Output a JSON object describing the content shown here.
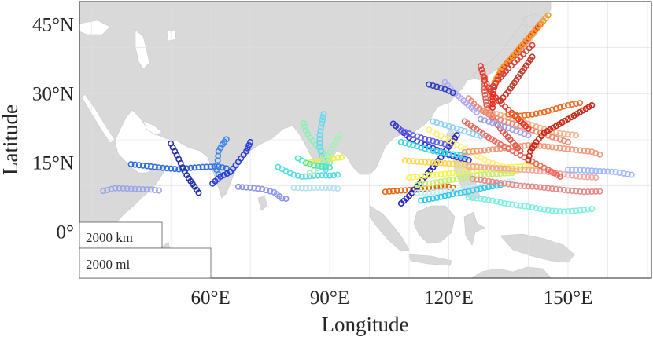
{
  "map": {
    "xlabel": "Longitude",
    "ylabel": "Latitude",
    "lon_range": [
      27,
      171
    ],
    "lat_range": [
      -10,
      50
    ],
    "x_ticks": [
      {
        "value": 60,
        "label": "60°E"
      },
      {
        "value": 90,
        "label": "90°E"
      },
      {
        "value": 120,
        "label": "120°E"
      },
      {
        "value": 150,
        "label": "150°E"
      }
    ],
    "y_ticks": [
      {
        "value": 0,
        "label": "0°"
      },
      {
        "value": 15,
        "label": "15°N"
      },
      {
        "value": 30,
        "label": "30°N"
      },
      {
        "value": 45,
        "label": "45°N"
      }
    ],
    "grid": true,
    "colors": {
      "land": "#d9d9d9",
      "sea": "#ffffff",
      "grid": "#dedede",
      "axis": "#262626"
    }
  },
  "scale_bar": {
    "km_label": "2000 km",
    "mi_label": "2000 mi",
    "position": "bottom-left"
  },
  "tracks": [
    {
      "color": "#9ea6e6",
      "points": [
        [
          33,
          8.9
        ],
        [
          36,
          9.5
        ],
        [
          39,
          9.4
        ],
        [
          42,
          9.3
        ],
        [
          45,
          9.2
        ],
        [
          47,
          9.0
        ]
      ]
    },
    {
      "color": "#2f6de0",
      "points": [
        [
          40,
          14.7
        ],
        [
          44,
          14.3
        ],
        [
          48,
          13.9
        ],
        [
          52,
          13.6
        ],
        [
          55,
          13.9
        ],
        [
          58,
          14.1
        ],
        [
          62,
          14.2
        ],
        [
          64,
          13.8
        ],
        [
          65,
          13.1
        ]
      ]
    },
    {
      "color": "#242fa6",
      "points": [
        [
          50,
          19.2
        ],
        [
          51,
          17.5
        ],
        [
          52,
          15.8
        ],
        [
          53,
          14.0
        ],
        [
          54,
          12.3
        ],
        [
          55,
          11.0
        ],
        [
          56,
          9.8
        ],
        [
          57,
          8.5
        ]
      ]
    },
    {
      "color": "#3f86ea",
      "points": [
        [
          64,
          20.1
        ],
        [
          63,
          19.0
        ],
        [
          62,
          17.5
        ],
        [
          61.8,
          15.5
        ],
        [
          61.5,
          13.5
        ],
        [
          62,
          12.5
        ]
      ]
    },
    {
      "color": "#2a3ed9",
      "points": [
        [
          70,
          19.5
        ],
        [
          69,
          17.5
        ],
        [
          67,
          15.2
        ],
        [
          65,
          13.0
        ],
        [
          62.5,
          12.0
        ],
        [
          60.5,
          10.5
        ]
      ]
    },
    {
      "color": "#8c94e8",
      "points": [
        [
          67,
          9.8
        ],
        [
          70,
          9.6
        ],
        [
          73,
          9.3
        ],
        [
          76,
          8.6
        ],
        [
          78,
          7.3
        ],
        [
          79,
          7.2
        ]
      ]
    },
    {
      "color": "#55dde0",
      "points": [
        [
          77,
          14.1
        ],
        [
          79,
          13.2
        ],
        [
          81,
          12.4
        ],
        [
          83,
          12.0
        ],
        [
          85,
          12.1
        ],
        [
          88,
          12.3
        ],
        [
          90,
          12.2
        ],
        [
          92,
          12.4
        ]
      ]
    },
    {
      "color": "#8bf0b8",
      "points": [
        [
          83.5,
          23.6
        ],
        [
          84,
          22.0
        ],
        [
          85,
          20.5
        ],
        [
          86.5,
          19.0
        ],
        [
          88,
          17.5
        ],
        [
          89,
          16.0
        ],
        [
          90,
          15.0
        ]
      ]
    },
    {
      "color": "#6ad8f0",
      "points": [
        [
          88.5,
          25.6
        ],
        [
          88,
          23.5
        ],
        [
          87.5,
          21.0
        ],
        [
          87.5,
          18.5
        ],
        [
          88,
          16.5
        ],
        [
          88.5,
          15.0
        ],
        [
          89,
          13.5
        ]
      ]
    },
    {
      "color": "#e6f04d",
      "points": [
        [
          84.5,
          15.0
        ],
        [
          87,
          15.4
        ],
        [
          89,
          15.8
        ],
        [
          91,
          16.0
        ],
        [
          93,
          16.2
        ]
      ]
    },
    {
      "color": "#a6eebd",
      "points": [
        [
          92.5,
          21.0
        ],
        [
          91.5,
          19.5
        ],
        [
          90.5,
          18.0
        ],
        [
          89.5,
          16.5
        ],
        [
          88.5,
          15.0
        ],
        [
          87,
          13.8
        ],
        [
          85,
          12.8
        ]
      ]
    },
    {
      "color": "#4ce6c0",
      "points": [
        [
          82,
          16.0
        ],
        [
          84,
          15.0
        ],
        [
          86,
          14.5
        ],
        [
          88,
          14.2
        ],
        [
          90,
          14.0
        ]
      ]
    },
    {
      "color": "#b7e0ef",
      "points": [
        [
          81,
          9.6
        ],
        [
          84,
          9.5
        ],
        [
          87,
          9.6
        ],
        [
          90,
          9.6
        ],
        [
          92,
          9.4
        ]
      ]
    },
    {
      "color": "#e86a16",
      "points": [
        [
          104,
          8.7
        ],
        [
          108,
          9.0
        ],
        [
          112,
          9.2
        ],
        [
          116,
          9.6
        ],
        [
          119,
          10.0
        ],
        [
          121,
          9.6
        ]
      ]
    },
    {
      "color": "#2a28b8",
      "points": [
        [
          108,
          6.2
        ],
        [
          110,
          7.8
        ],
        [
          112,
          9.8
        ],
        [
          114,
          12.0
        ],
        [
          116,
          14.0
        ],
        [
          118,
          16.2
        ],
        [
          120,
          18.5
        ],
        [
          122,
          21.0
        ]
      ]
    },
    {
      "color": "#3a36d0",
      "points": [
        [
          106,
          23.5
        ],
        [
          108,
          22.0
        ],
        [
          110,
          20.5
        ],
        [
          113,
          19.3
        ],
        [
          116,
          18.2
        ],
        [
          119,
          17.0
        ],
        [
          122,
          16.2
        ],
        [
          125,
          15.6
        ]
      ]
    },
    {
      "color": "#5f5ff0",
      "points": [
        [
          108,
          22.0
        ],
        [
          111,
          21.0
        ],
        [
          114,
          20.2
        ],
        [
          117,
          19.5
        ],
        [
          120,
          18.8
        ]
      ]
    },
    {
      "color": "#38d8e6",
      "points": [
        [
          108,
          19.5
        ],
        [
          112,
          18.6
        ],
        [
          116,
          17.6
        ],
        [
          120,
          17.0
        ],
        [
          124,
          16.5
        ]
      ]
    },
    {
      "color": "#ffd54a",
      "points": [
        [
          109,
          15.5
        ],
        [
          113,
          15.2
        ],
        [
          117,
          15.0
        ],
        [
          121,
          14.8
        ],
        [
          125,
          14.5
        ],
        [
          129,
          14.0
        ],
        [
          133,
          13.5
        ],
        [
          137,
          13.2
        ]
      ]
    },
    {
      "color": "#f4f44f",
      "points": [
        [
          110,
          11.8
        ],
        [
          114,
          12.2
        ],
        [
          118,
          12.5
        ],
        [
          122,
          12.9
        ],
        [
          126,
          13.3
        ],
        [
          130,
          13.8
        ],
        [
          134,
          14.0
        ],
        [
          138,
          14.2
        ],
        [
          142,
          14.4
        ]
      ]
    },
    {
      "color": "#c6f06f",
      "points": [
        [
          112,
          10.2
        ],
        [
          116,
          10.6
        ],
        [
          120,
          11.2
        ],
        [
          124,
          11.8
        ],
        [
          128,
          12.4
        ],
        [
          132,
          12.6
        ],
        [
          136,
          12.8
        ]
      ]
    },
    {
      "color": "#fff07a",
      "points": [
        [
          115,
          22.2
        ],
        [
          118,
          20.8
        ],
        [
          121,
          19.4
        ],
        [
          124,
          18.0
        ],
        [
          127,
          16.6
        ],
        [
          130,
          15.2
        ],
        [
          133,
          14.3
        ]
      ]
    },
    {
      "color": "#bff0f2",
      "points": [
        [
          112,
          8.5
        ],
        [
          116,
          8.6
        ],
        [
          120,
          8.8
        ],
        [
          124,
          9.2
        ],
        [
          128,
          9.8
        ],
        [
          132,
          10.4
        ],
        [
          136,
          11.0
        ]
      ]
    },
    {
      "color": "#7ff0e0",
      "points": [
        [
          125,
          7.5
        ],
        [
          128,
          7.2
        ],
        [
          131,
          6.8
        ],
        [
          134,
          6.2
        ],
        [
          137,
          5.8
        ],
        [
          140,
          5.5
        ],
        [
          143,
          5.0
        ],
        [
          146,
          4.6
        ],
        [
          149,
          4.4
        ],
        [
          152,
          4.6
        ],
        [
          156,
          5.0
        ]
      ]
    },
    {
      "color": "#36c8ee",
      "points": [
        [
          113,
          6.8
        ],
        [
          117,
          7.4
        ],
        [
          121,
          8.2
        ],
        [
          125,
          8.8
        ],
        [
          129,
          9.6
        ],
        [
          133,
          10.2
        ]
      ]
    },
    {
      "color": "#f5a8a0",
      "points": [
        [
          125,
          14.2
        ],
        [
          129,
          14.0
        ],
        [
          133,
          13.8
        ],
        [
          137,
          13.6
        ],
        [
          141,
          13.4
        ],
        [
          145,
          13.0
        ],
        [
          149,
          12.5
        ],
        [
          153,
          12.0
        ],
        [
          157,
          11.8
        ]
      ]
    },
    {
      "color": "#e78a8a",
      "points": [
        [
          126,
          11.5
        ],
        [
          130,
          11.0
        ],
        [
          134,
          10.5
        ],
        [
          138,
          10.0
        ],
        [
          142,
          9.8
        ],
        [
          146,
          9.4
        ],
        [
          150,
          9.0
        ],
        [
          154,
          8.7
        ],
        [
          158,
          8.8
        ]
      ]
    },
    {
      "color": "#f09a7a",
      "points": [
        [
          124,
          17.3
        ],
        [
          128,
          17.6
        ],
        [
          132,
          18.0
        ],
        [
          136,
          18.4
        ],
        [
          140,
          18.8
        ],
        [
          144,
          18.6
        ],
        [
          148,
          18.2
        ],
        [
          152,
          17.8
        ],
        [
          156,
          17.4
        ],
        [
          158,
          16.8
        ]
      ]
    },
    {
      "color": "#ea6a60",
      "points": [
        [
          124,
          24.0
        ],
        [
          127,
          22.2
        ],
        [
          130,
          20.5
        ],
        [
          133,
          19.0
        ],
        [
          136,
          17.6
        ],
        [
          139,
          16.2
        ],
        [
          142,
          14.8
        ],
        [
          145,
          13.5
        ],
        [
          148,
          12.0
        ]
      ]
    },
    {
      "color": "#e05a50",
      "points": [
        [
          129,
          33.5
        ],
        [
          129,
          30.5
        ],
        [
          129.5,
          27.5
        ],
        [
          131,
          24.8
        ],
        [
          133,
          22.4
        ],
        [
          135.5,
          20.0
        ],
        [
          138,
          17.6
        ]
      ]
    },
    {
      "color": "#f2b58a",
      "points": [
        [
          128,
          26.5
        ],
        [
          132,
          25.6
        ],
        [
          136,
          24.6
        ],
        [
          140,
          23.5
        ],
        [
          144,
          22.3
        ],
        [
          148,
          21.4
        ],
        [
          152,
          21.0
        ]
      ]
    },
    {
      "color": "#ee8870",
      "points": [
        [
          125,
          29.0
        ],
        [
          127,
          27.2
        ],
        [
          130,
          25.5
        ],
        [
          134,
          24.0
        ],
        [
          138,
          23.0
        ],
        [
          142,
          21.8
        ],
        [
          146,
          20.6
        ],
        [
          150,
          19.5
        ]
      ]
    },
    {
      "color": "#e83828",
      "points": [
        [
          128,
          36.0
        ],
        [
          129,
          33.0
        ],
        [
          130.5,
          30.5
        ],
        [
          132.5,
          28.5
        ],
        [
          135,
          26.5
        ],
        [
          137.5,
          24.5
        ],
        [
          140,
          22.4
        ]
      ]
    },
    {
      "color": "#c72818",
      "points": [
        [
          156,
          27.5
        ],
        [
          153,
          26.0
        ],
        [
          150,
          24.5
        ],
        [
          147,
          23.0
        ],
        [
          144,
          21.5
        ],
        [
          142,
          19.5
        ],
        [
          140.5,
          17.5
        ],
        [
          140,
          15.5
        ]
      ]
    },
    {
      "color": "#f06a20",
      "points": [
        [
          153,
          28.0
        ],
        [
          150,
          27.5
        ],
        [
          147,
          26.8
        ],
        [
          144,
          26.0
        ],
        [
          141,
          25.5
        ],
        [
          138,
          25.2
        ],
        [
          135,
          25.5
        ]
      ]
    },
    {
      "color": "#e52d20",
      "points": [
        [
          143,
          45.0
        ],
        [
          140,
          42.0
        ],
        [
          137,
          39.0
        ],
        [
          134,
          36.0
        ],
        [
          132,
          33.0
        ],
        [
          131,
          30.0
        ],
        [
          131,
          27.0
        ]
      ]
    },
    {
      "color": "#f49b2a",
      "points": [
        [
          145,
          47.0
        ],
        [
          142,
          44.0
        ],
        [
          139,
          41.0
        ],
        [
          136,
          38.0
        ],
        [
          133,
          35.0
        ],
        [
          131.5,
          32.5
        ]
      ]
    },
    {
      "color": "#d8403a",
      "points": [
        [
          141,
          40.5
        ],
        [
          138,
          38.0
        ],
        [
          135,
          35.5
        ],
        [
          132.5,
          33.0
        ],
        [
          130.5,
          31.0
        ]
      ]
    },
    {
      "color": "#c0392b",
      "points": [
        [
          141,
          38.0
        ],
        [
          139,
          35.5
        ],
        [
          137,
          33.0
        ],
        [
          135,
          30.5
        ],
        [
          133,
          28.5
        ]
      ]
    },
    {
      "color": "#a0a0e8",
      "points": [
        [
          128,
          24.5
        ],
        [
          132,
          23.4
        ],
        [
          136,
          22.2
        ],
        [
          140,
          21.0
        ]
      ]
    },
    {
      "color": "#8fd0f8",
      "points": [
        [
          116,
          24.0
        ],
        [
          119,
          23.2
        ],
        [
          122,
          22.4
        ],
        [
          125,
          21.6
        ],
        [
          128,
          20.8
        ]
      ]
    },
    {
      "color": "#b0a8ff",
      "points": [
        [
          119,
          32.5
        ],
        [
          121,
          30.5
        ],
        [
          123,
          29.0
        ],
        [
          125,
          27.5
        ],
        [
          127,
          26.0
        ]
      ]
    },
    {
      "color": "#3040c0",
      "points": [
        [
          115,
          32.0
        ],
        [
          117,
          31.5
        ],
        [
          119,
          31.0
        ],
        [
          121,
          30.2
        ]
      ]
    },
    {
      "color": "#9fb8ff",
      "points": [
        [
          150,
          13.5
        ],
        [
          154,
          13.4
        ],
        [
          158,
          13.2
        ],
        [
          162,
          13.0
        ],
        [
          166,
          12.4
        ]
      ]
    }
  ]
}
